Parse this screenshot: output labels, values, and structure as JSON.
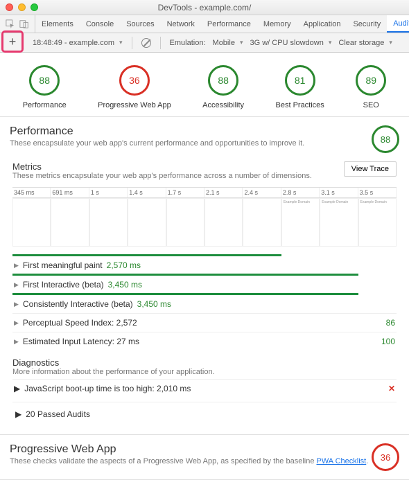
{
  "window": {
    "title": "DevTools - example.com/"
  },
  "tabs": {
    "items": [
      "Elements",
      "Console",
      "Sources",
      "Network",
      "Performance",
      "Memory",
      "Application",
      "Security",
      "Audits"
    ],
    "active": 8
  },
  "toolbar": {
    "timestamp": "18:48:49 - example.com",
    "emulation_label": "Emulation:",
    "emulation_value": "Mobile",
    "network_value": "3G w/ CPU slowdown",
    "clear_label": "Clear storage"
  },
  "scores": [
    {
      "label": "Performance",
      "value": "88",
      "color": "green"
    },
    {
      "label": "Progressive Web App",
      "value": "36",
      "color": "red"
    },
    {
      "label": "Accessibility",
      "value": "88",
      "color": "green"
    },
    {
      "label": "Best Practices",
      "value": "81",
      "color": "green"
    },
    {
      "label": "SEO",
      "value": "89",
      "color": "green"
    }
  ],
  "perf": {
    "title": "Performance",
    "sub": "These encapsulate your web app's current performance and opportunities to improve it.",
    "score": "88",
    "metrics_title": "Metrics",
    "metrics_sub": "These metrics encapsulate your web app's performance across a number of dimensions.",
    "view_trace": "View Trace",
    "ticks": [
      "345 ms",
      "691 ms",
      "1 s",
      "1.4 s",
      "1.7 s",
      "2.1 s",
      "2.4 s",
      "2.8 s",
      "3.1 s",
      "3.5 s"
    ],
    "frame_text": "Example Domain",
    "rows": [
      {
        "label": "First meaningful paint",
        "value": "2,570 ms",
        "bar_pct": 70
      },
      {
        "label": "First Interactive (beta)",
        "value": "3,450 ms",
        "bar_pct": 90
      },
      {
        "label": "Consistently Interactive (beta)",
        "value": "3,450 ms",
        "bar_pct": 90
      }
    ],
    "scored_rows": [
      {
        "label": "Perceptual Speed Index: 2,572",
        "score": "86"
      },
      {
        "label": "Estimated Input Latency: 27 ms",
        "score": "100"
      }
    ],
    "diag_title": "Diagnostics",
    "diag_sub": "More information about the performance of your application.",
    "diag_row": "JavaScript boot-up time is too high: 2,010 ms",
    "passed": "20 Passed Audits"
  },
  "pwa": {
    "title": "Progressive Web App",
    "sub_pre": "These checks validate the aspects of a Progressive Web App, as specified by the baseline ",
    "link": "PWA Checklist",
    "sub_post": ".",
    "score": "36"
  },
  "colors": {
    "green": "#2b882f",
    "red": "#d93025",
    "accent": "#e6396e",
    "link": "#1a73e8"
  }
}
